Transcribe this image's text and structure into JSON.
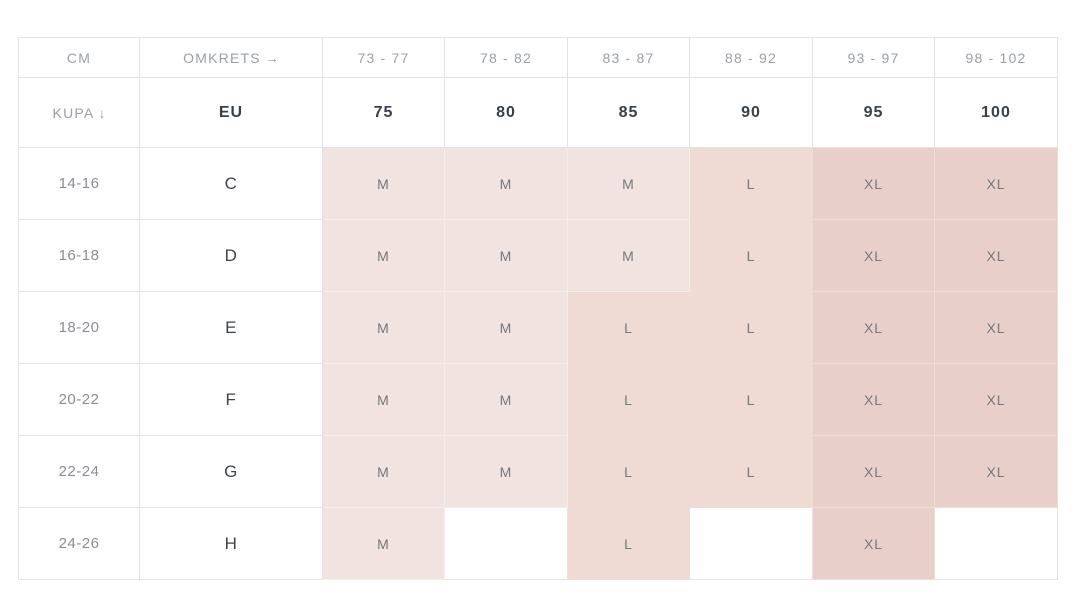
{
  "colors": {
    "m": "#f1e4e0",
    "l": "#efdbd4",
    "xl": "#e9cfca",
    "m_line": "#f7eeeb",
    "xl_line": "#f1dcd8",
    "border": "#e3e3e3",
    "header_light_text": "#9aa0a9",
    "header_dark_text": "#3a4048",
    "range_text": "#898d94",
    "cup_text": "#3e434b",
    "size_text": "#74777c"
  },
  "table": {
    "header_row_1": {
      "unit_label": "CM",
      "circumference_label": "OMKRETS",
      "circumference_arrow": "→",
      "cm_ranges": [
        "73 - 77",
        "78 - 82",
        "83 - 87",
        "88 - 92",
        "93 - 97",
        "98 - 102"
      ]
    },
    "header_row_2": {
      "cup_label": "KUPA",
      "cup_arrow": "↓",
      "region_label": "EU",
      "band_sizes": [
        "75",
        "80",
        "85",
        "90",
        "95",
        "100"
      ]
    },
    "rows": [
      {
        "cm_range": "14-16",
        "cup": "C",
        "sizes": [
          "M",
          "M",
          "M",
          "L",
          "XL",
          "XL"
        ]
      },
      {
        "cm_range": "16-18",
        "cup": "D",
        "sizes": [
          "M",
          "M",
          "M",
          "L",
          "XL",
          "XL"
        ]
      },
      {
        "cm_range": "18-20",
        "cup": "E",
        "sizes": [
          "M",
          "M",
          "L",
          "L",
          "XL",
          "XL"
        ]
      },
      {
        "cm_range": "20-22",
        "cup": "F",
        "sizes": [
          "M",
          "M",
          "L",
          "L",
          "XL",
          "XL"
        ]
      },
      {
        "cm_range": "22-24",
        "cup": "G",
        "sizes": [
          "M",
          "M",
          "L",
          "L",
          "XL",
          "XL"
        ]
      },
      {
        "cm_range": "24-26",
        "cup": "H",
        "sizes": [
          "M",
          "",
          "L",
          "",
          "XL",
          ""
        ]
      }
    ]
  }
}
